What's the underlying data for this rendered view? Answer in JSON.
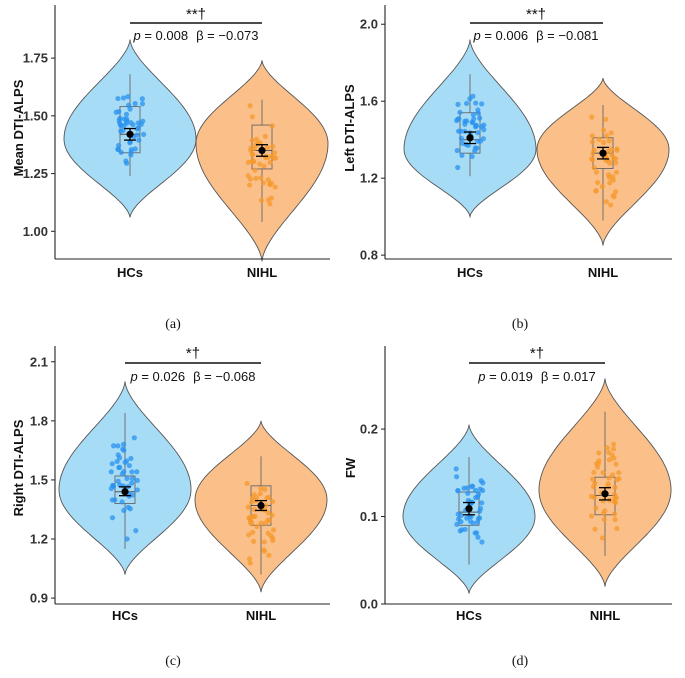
{
  "colors": {
    "hcs_fill": "#a7dcf7",
    "hcs_point": "#2a93ef",
    "nihl_fill": "#fbc08a",
    "nihl_point": "#f59a2c",
    "outline": "#555555"
  },
  "chart_data": [
    {
      "type": "violin",
      "panel": "(a)",
      "ylabel": "Mean DTI-ALPS",
      "ylim": [
        0.88,
        1.98
      ],
      "yticks": [
        1.0,
        1.25,
        1.5,
        1.75
      ],
      "ytick_labels": [
        "1.00",
        "1.25",
        "1.50",
        "1.75"
      ],
      "categories": [
        "HCs",
        "NIHL"
      ],
      "groups": [
        {
          "name": "HCs",
          "violin_min": 1.06,
          "violin_max": 1.83,
          "mode": 1.4,
          "box": [
            1.24,
            1.34,
            1.42,
            1.54,
            1.68
          ],
          "mean": 1.42,
          "ci": [
            1.395,
            1.445
          ]
        },
        {
          "name": "NIHL",
          "violin_min": 0.87,
          "violin_max": 1.74,
          "mode": 1.38,
          "box": [
            1.04,
            1.27,
            1.35,
            1.46,
            1.57
          ],
          "mean": 1.35,
          "ci": [
            1.325,
            1.375
          ]
        }
      ],
      "significance": {
        "marker": "**†",
        "p_prefix": "p",
        "p_text": " = 0.008",
        "beta_text": "β = −0.073"
      }
    },
    {
      "type": "violin",
      "panel": "(b)",
      "ylabel": "Left DTI-ALPS",
      "ylim": [
        0.78,
        2.1
      ],
      "yticks": [
        0.8,
        1.2,
        1.6,
        2.0
      ],
      "ytick_labels": [
        "0.8",
        "1.2",
        "1.6",
        "2.0"
      ],
      "categories": [
        "HCs",
        "NIHL"
      ],
      "groups": [
        {
          "name": "HCs",
          "violin_min": 1.0,
          "violin_max": 1.92,
          "mode": 1.35,
          "box": [
            1.21,
            1.33,
            1.4,
            1.54,
            1.74
          ],
          "mean": 1.41,
          "ci": [
            1.38,
            1.44
          ]
        },
        {
          "name": "NIHL",
          "violin_min": 0.85,
          "violin_max": 1.72,
          "mode": 1.35,
          "box": [
            0.98,
            1.25,
            1.33,
            1.41,
            1.58
          ],
          "mean": 1.33,
          "ci": [
            1.3,
            1.36
          ]
        }
      ],
      "significance": {
        "marker": "**†",
        "p_prefix": "p",
        "p_text": " = 0.006",
        "beta_text": "β = −0.081"
      }
    },
    {
      "type": "violin",
      "panel": "(c)",
      "ylabel": "Right DTI-ALPS",
      "ylim": [
        0.87,
        2.18
      ],
      "yticks": [
        0.9,
        1.2,
        1.5,
        1.8,
        2.1
      ],
      "ytick_labels": [
        "0.9",
        "1.2",
        "1.5",
        "1.8",
        "2.1"
      ],
      "categories": [
        "HCs",
        "NIHL"
      ],
      "groups": [
        {
          "name": "HCs",
          "violin_min": 1.02,
          "violin_max": 2.0,
          "mode": 1.45,
          "box": [
            1.15,
            1.38,
            1.44,
            1.52,
            1.84
          ],
          "mean": 1.44,
          "ci": [
            1.42,
            1.465
          ]
        },
        {
          "name": "NIHL",
          "violin_min": 0.93,
          "violin_max": 1.8,
          "mode": 1.4,
          "box": [
            1.02,
            1.27,
            1.37,
            1.47,
            1.62
          ],
          "mean": 1.37,
          "ci": [
            1.345,
            1.395
          ]
        }
      ],
      "significance": {
        "marker": "*†",
        "p_prefix": "p",
        "p_text": " = 0.026",
        "beta_text": "β = −0.068"
      }
    },
    {
      "type": "violin",
      "panel": "(d)",
      "ylabel": "FW",
      "ylim": [
        0.0,
        0.295
      ],
      "yticks": [
        0.0,
        0.1,
        0.2
      ],
      "ytick_labels": [
        "0.0",
        "0.1",
        "0.2"
      ],
      "categories": [
        "HCs",
        "NIHL"
      ],
      "groups": [
        {
          "name": "HCs",
          "violin_min": 0.012,
          "violin_max": 0.205,
          "mode": 0.1,
          "box": [
            0.045,
            0.09,
            0.105,
            0.128,
            0.168
          ],
          "mean": 0.109,
          "ci": [
            0.102,
            0.116
          ]
        },
        {
          "name": "NIHL",
          "violin_min": 0.02,
          "violin_max": 0.258,
          "mode": 0.13,
          "box": [
            0.055,
            0.102,
            0.124,
            0.145,
            0.22
          ],
          "mean": 0.126,
          "ci": [
            0.119,
            0.133
          ]
        }
      ],
      "significance": {
        "marker": "*†",
        "p_prefix": "p",
        "p_text": " = 0.019",
        "beta_text": "β = 0.017"
      }
    }
  ]
}
